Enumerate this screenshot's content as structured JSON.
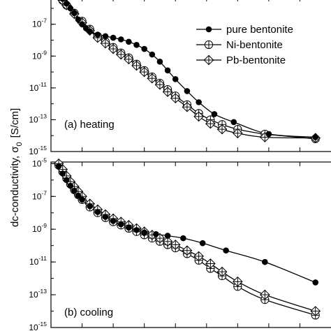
{
  "chart_data": {
    "type": "line",
    "ylabel_main": "dc-conductivity, σ",
    "ylabel_sub": "0",
    "ylabel_unit": "[S/cm]",
    "y_scale": "log",
    "legend": [
      {
        "name": "pure bentonite",
        "marker": "filled-circle"
      },
      {
        "name": "Ni-bentonite",
        "marker": "crossed-circle"
      },
      {
        "name": "Pb-bentonite",
        "marker": "crossed-diamond"
      }
    ],
    "legend_position": "top-right",
    "panels": [
      {
        "label": "(a) heating",
        "ylim_log10": [
          -15,
          -5.3
        ],
        "yticks": [
          {
            "base": "10",
            "exp": "-7",
            "value": -7
          },
          {
            "base": "10",
            "exp": "-9",
            "value": -9
          },
          {
            "base": "10",
            "exp": "-11",
            "value": -11
          },
          {
            "base": "10",
            "exp": "-13",
            "value": -13
          },
          {
            "base": "10",
            "exp": "-15",
            "value": -15
          }
        ],
        "series": [
          {
            "name": "pure bentonite",
            "marker": "filled-circle",
            "x": [
              1.5,
              2,
              2.5,
              3,
              3.5,
              4,
              4.5,
              5,
              6,
              7,
              8,
              9,
              10,
              11,
              12,
              13,
              14,
              15,
              16,
              17.5,
              19,
              21,
              23.5,
              28,
              34
            ],
            "log_sigma": [
              -5.4,
              -5.7,
              -6.0,
              -6.3,
              -6.7,
              -7.0,
              -7.25,
              -7.45,
              -7.65,
              -7.75,
              -7.85,
              -7.95,
              -8.1,
              -8.3,
              -8.55,
              -8.9,
              -9.35,
              -9.9,
              -10.45,
              -11.2,
              -11.9,
              -12.65,
              -13.15,
              -13.9,
              -14.1
            ]
          },
          {
            "name": "Ni-bentonite",
            "marker": "crossed-circle",
            "x": [
              1.5,
              2,
              3,
              4,
              5,
              6,
              7,
              8,
              9,
              10,
              11,
              12,
              13,
              14,
              15,
              16,
              17.5,
              19,
              20.5,
              22,
              24,
              27.5,
              34
            ],
            "log_sigma": [
              -5.5,
              -5.8,
              -6.3,
              -6.8,
              -7.3,
              -7.75,
              -8.1,
              -8.45,
              -8.8,
              -9.1,
              -9.5,
              -9.9,
              -10.3,
              -10.7,
              -11.1,
              -11.5,
              -12.05,
              -12.6,
              -13.0,
              -13.3,
              -13.6,
              -13.9,
              -14.2
            ]
          },
          {
            "name": "Pb-bentonite",
            "marker": "crossed-diamond",
            "x": [
              1.5,
              2,
              3,
              4,
              5,
              6,
              7,
              8,
              9,
              10,
              11,
              12,
              13,
              14,
              15,
              16,
              17.5,
              19,
              20.5,
              22,
              24,
              27.5,
              34
            ],
            "log_sigma": [
              -5.5,
              -5.8,
              -6.35,
              -6.9,
              -7.4,
              -7.85,
              -8.2,
              -8.55,
              -8.9,
              -9.2,
              -9.6,
              -10.0,
              -10.4,
              -10.8,
              -11.25,
              -11.65,
              -12.2,
              -12.8,
              -13.25,
              -13.6,
              -13.85,
              -14.1,
              -14.15
            ]
          }
        ]
      },
      {
        "label": "(b) cooling",
        "ylim_log10": [
          -15,
          -4.9
        ],
        "yticks": [
          {
            "base": "10",
            "exp": "-5",
            "value": -5
          },
          {
            "base": "10",
            "exp": "-7",
            "value": -7
          },
          {
            "base": "10",
            "exp": "-9",
            "value": -9
          },
          {
            "base": "10",
            "exp": "-11",
            "value": -11
          },
          {
            "base": "10",
            "exp": "-13",
            "value": -13
          },
          {
            "base": "10",
            "exp": "-15",
            "value": -15
          }
        ],
        "series": [
          {
            "name": "pure bentonite",
            "marker": "filled-circle",
            "x": [
              1,
              1.5,
              2,
              2.5,
              3,
              3.5,
              4,
              5,
              6,
              7,
              8,
              9,
              10,
              11,
              12,
              13.5,
              15,
              17,
              19.5,
              22.5,
              27.5,
              34
            ],
            "log_sigma": [
              -5.15,
              -5.6,
              -6.0,
              -6.35,
              -6.65,
              -6.95,
              -7.2,
              -7.6,
              -7.95,
              -8.25,
              -8.5,
              -8.7,
              -8.9,
              -9.05,
              -9.2,
              -9.3,
              -9.4,
              -9.55,
              -9.85,
              -10.3,
              -11.0,
              -12.25
            ]
          },
          {
            "name": "Ni-bentonite",
            "marker": "crossed-circle",
            "x": [
              1,
              1.5,
              2,
              2.5,
              3,
              3.5,
              4,
              5,
              6,
              7,
              8,
              9,
              10,
              11,
              12,
              13,
              14,
              15,
              16,
              17.5,
              19,
              20.5,
              22,
              24,
              27.5,
              34
            ],
            "log_sigma": [
              -5.1,
              -5.5,
              -5.9,
              -6.25,
              -6.6,
              -6.9,
              -7.2,
              -7.65,
              -8.0,
              -8.3,
              -8.55,
              -8.75,
              -8.95,
              -9.15,
              -9.35,
              -9.55,
              -9.75,
              -9.95,
              -10.15,
              -10.5,
              -10.9,
              -11.4,
              -11.85,
              -12.5,
              -13.3,
              -14.25
            ]
          },
          {
            "name": "Pb-bentonite",
            "marker": "crossed-diamond",
            "x": [
              1,
              1.5,
              2,
              2.5,
              3,
              3.5,
              4,
              5,
              6,
              7,
              8,
              9,
              10,
              11,
              12,
              13,
              14,
              15,
              16,
              17.5,
              19,
              20.5,
              22,
              24,
              27.5,
              34
            ],
            "log_sigma": [
              -5.0,
              -5.35,
              -5.75,
              -6.1,
              -6.4,
              -6.7,
              -7.0,
              -7.45,
              -7.8,
              -8.1,
              -8.35,
              -8.55,
              -8.75,
              -8.95,
              -9.15,
              -9.35,
              -9.55,
              -9.75,
              -9.95,
              -10.3,
              -10.65,
              -11.1,
              -11.6,
              -12.2,
              -13.0,
              -14.0
            ]
          }
        ]
      }
    ]
  }
}
